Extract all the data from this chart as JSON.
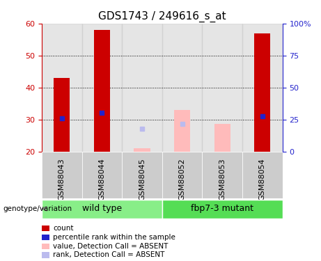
{
  "title": "GDS1743 / 249616_s_at",
  "samples": [
    "GSM88043",
    "GSM88044",
    "GSM88045",
    "GSM88052",
    "GSM88053",
    "GSM88054"
  ],
  "ylim_left": [
    20,
    60
  ],
  "ylim_right": [
    0,
    100
  ],
  "yticks_left": [
    20,
    30,
    40,
    50,
    60
  ],
  "yticks_right": [
    0,
    25,
    50,
    75,
    100
  ],
  "yticklabels_right": [
    "0",
    "25",
    "50",
    "75",
    "100%"
  ],
  "red_bars": [
    43,
    58,
    null,
    null,
    null,
    57
  ],
  "blue_squares": [
    30.3,
    32,
    null,
    null,
    null,
    31
  ],
  "pink_bars": [
    null,
    null,
    21,
    33,
    28.5,
    null
  ],
  "light_blue_squares": [
    null,
    null,
    27,
    28.5,
    null,
    null
  ],
  "wild_type_indices": [
    0,
    1,
    2
  ],
  "mutant_indices": [
    3,
    4,
    5
  ],
  "wild_type_label": "wild type",
  "mutant_label": "fbp7-3 mutant",
  "genotype_label": "genotype/variation",
  "legend_items": [
    {
      "label": "count",
      "color": "#cc0000"
    },
    {
      "label": "percentile rank within the sample",
      "color": "#2222cc"
    },
    {
      "label": "value, Detection Call = ABSENT",
      "color": "#ffbbbb"
    },
    {
      "label": "rank, Detection Call = ABSENT",
      "color": "#bbbbee"
    }
  ],
  "bar_width": 0.4,
  "red_color": "#cc0000",
  "blue_color": "#2222cc",
  "pink_color": "#ffbbbb",
  "light_blue_color": "#bbbbee",
  "wild_type_bg": "#88ee88",
  "mutant_bg": "#55dd55",
  "sample_bg": "#cccccc",
  "title_fontsize": 11,
  "tick_fontsize": 8,
  "legend_fontsize": 7.5
}
